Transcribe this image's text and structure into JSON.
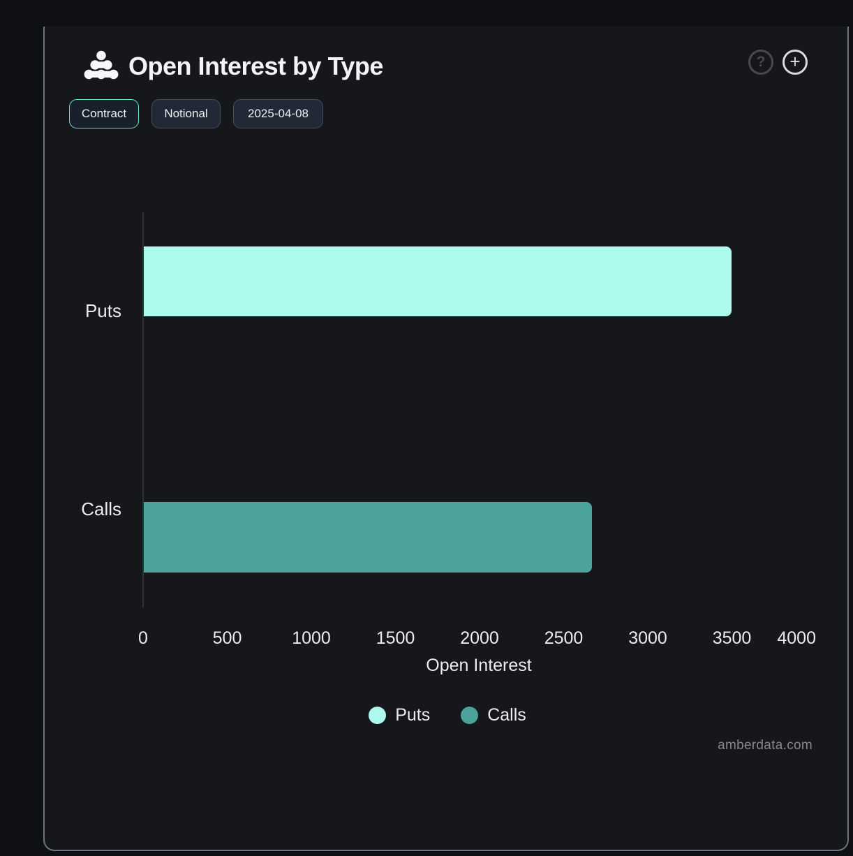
{
  "header": {
    "title": "Open Interest by Type",
    "help_label": "?",
    "add_label": "+"
  },
  "toolbar": {
    "buttons": [
      {
        "label": "Contract",
        "active": true
      },
      {
        "label": "Notional",
        "active": false
      },
      {
        "label": "2025-04-08",
        "active": false
      }
    ]
  },
  "chart_data": {
    "type": "bar",
    "orientation": "horizontal",
    "title": "Open Interest by Type",
    "categories": [
      "Puts",
      "Calls"
    ],
    "series": [
      {
        "name": "Puts",
        "value": 3500,
        "color": "#ACFAEE"
      },
      {
        "name": "Calls",
        "value": 2670,
        "color": "#4BA39C"
      }
    ],
    "xlabel": "Open Interest",
    "x_ticks": [
      "0",
      "500",
      "1000",
      "1500",
      "2000",
      "2500",
      "3000",
      "3500",
      "4000"
    ],
    "xlim": [
      0,
      4000
    ],
    "grid": false,
    "legend_position": "bottom",
    "legend": [
      {
        "label": "Puts",
        "color": "#ACFAEE"
      },
      {
        "label": "Calls",
        "color": "#4BA39C"
      }
    ]
  },
  "footer": {
    "watermark": "amberdata.com"
  },
  "colors": {
    "page_bg": "#0e1013",
    "card_bg": "#15171a",
    "card_border": "#6b7583",
    "accent_active_border": "#5fe4cd",
    "axis_line": "#2e3135",
    "text_primary": "#f3f4f6",
    "text_axis": "#e9ebed",
    "watermark": "#85898f"
  }
}
